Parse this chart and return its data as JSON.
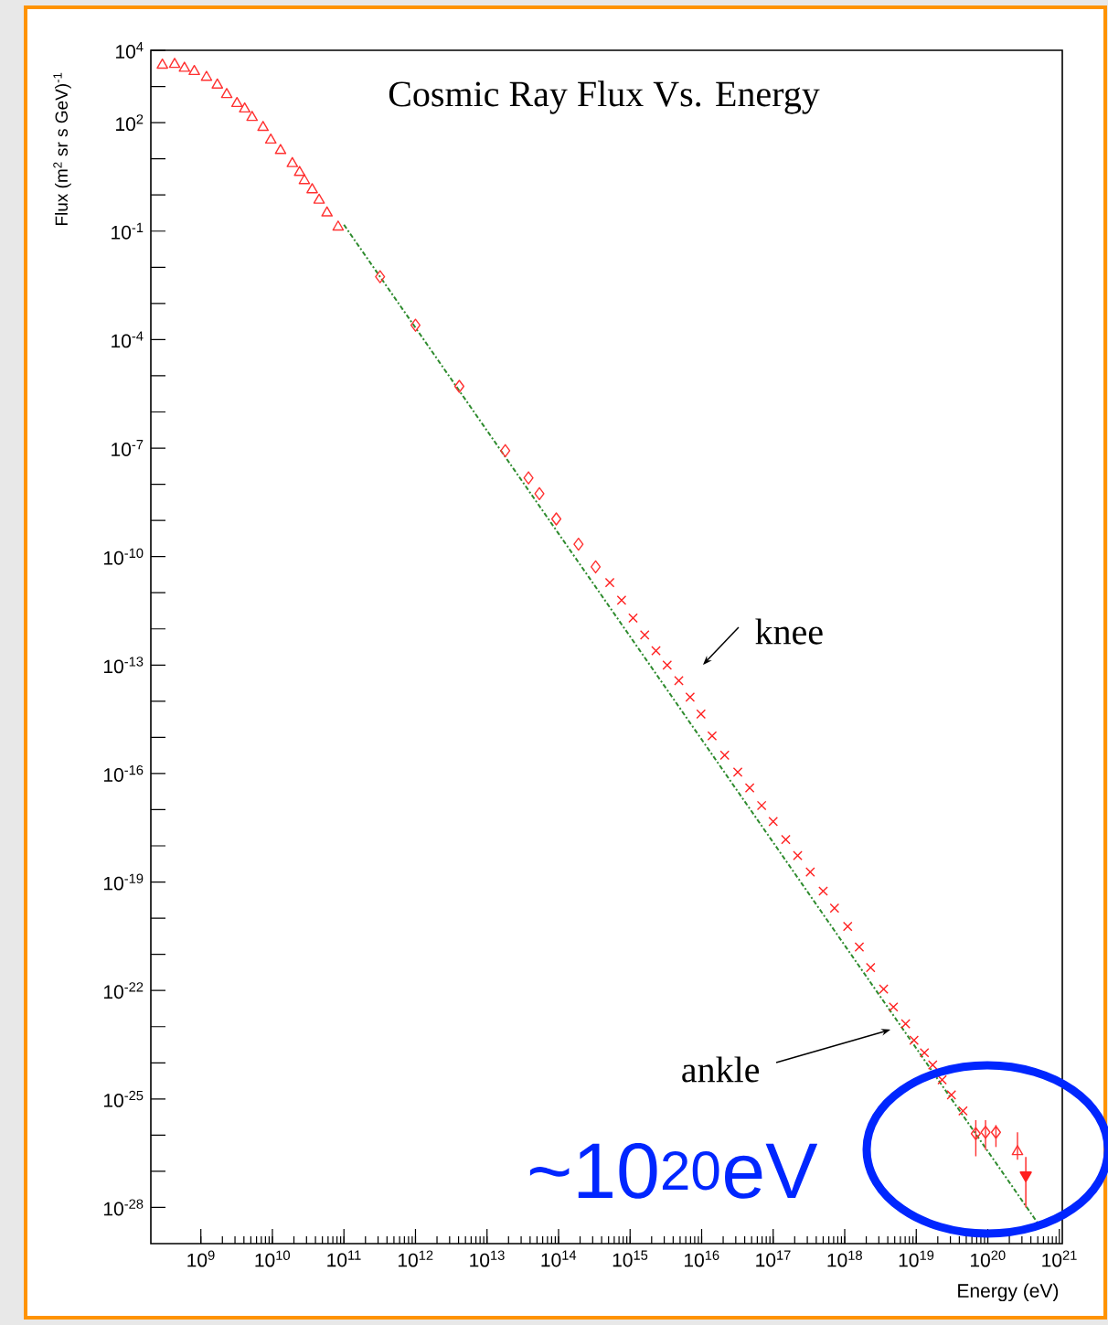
{
  "chart_data": {
    "type": "scatter",
    "title": "Cosmic Ray Flux Vs. Energy",
    "xlabel": "Energy (eV)",
    "ylabel": "Flux (m$^{2}$ sr s GeV)$^{-1}$",
    "log": "xy",
    "grid": false,
    "xlim": [
      200000000.0,
      1.1e+21
    ],
    "ylim": [
      1e-29,
      10000.0
    ],
    "xticks": [
      {
        "value": 1000000000.0,
        "label": "10$^{9}$"
      },
      {
        "value": 10000000000.0,
        "label": "10$^{10}$"
      },
      {
        "value": 100000000000.0,
        "label": "10$^{11}$"
      },
      {
        "value": 1000000000000.0,
        "label": "10$^{12}$"
      },
      {
        "value": 10000000000000.0,
        "label": "10$^{13}$"
      },
      {
        "value": 100000000000000.0,
        "label": "10$^{14}$"
      },
      {
        "value": 1000000000000000.0,
        "label": "10$^{15}$"
      },
      {
        "value": 1e+16,
        "label": "10$^{16}$"
      },
      {
        "value": 1e+17,
        "label": "10$^{17}$"
      },
      {
        "value": 1e+18,
        "label": "10$^{18}$"
      },
      {
        "value": 1e+19,
        "label": "10$^{19}$"
      },
      {
        "value": 1e+20,
        "label": "10$^{20}$"
      },
      {
        "value": 1e+21,
        "label": "10$^{21}$"
      }
    ],
    "yticks": [
      {
        "value": 10000.0,
        "label": "10$^{4}$"
      },
      {
        "value": 1000.0,
        "label": null
      },
      {
        "value": 100.0,
        "label": "10$^{2}$"
      },
      {
        "value": 10.0,
        "label": null
      },
      {
        "value": 1,
        "label": null
      },
      {
        "value": 0.1,
        "label": "10$^{-1}$"
      },
      {
        "value": 0.01,
        "label": null
      },
      {
        "value": 0.001,
        "label": null
      },
      {
        "value": 0.0001,
        "label": "10$^{-4}$"
      },
      {
        "value": 1e-05,
        "label": null
      },
      {
        "value": 1e-06,
        "label": null
      },
      {
        "value": 1e-07,
        "label": "10$^{-7}$"
      },
      {
        "value": 1e-08,
        "label": null
      },
      {
        "value": 1e-09,
        "label": null
      },
      {
        "value": 1e-10,
        "label": "10$^{-10}$"
      },
      {
        "value": 1e-11,
        "label": null
      },
      {
        "value": 1e-12,
        "label": null
      },
      {
        "value": 1e-13,
        "label": "10$^{-13}$"
      },
      {
        "value": 1e-14,
        "label": null
      },
      {
        "value": 1e-15,
        "label": null
      },
      {
        "value": 1e-16,
        "label": "10$^{-16}$"
      },
      {
        "value": 1e-17,
        "label": null
      },
      {
        "value": 1e-18,
        "label": null
      },
      {
        "value": 1e-19,
        "label": "10$^{-19}$"
      },
      {
        "value": 1e-20,
        "label": null
      },
      {
        "value": 1e-21,
        "label": null
      },
      {
        "value": 1e-22,
        "label": "10$^{-22}$"
      },
      {
        "value": 1e-23,
        "label": null
      },
      {
        "value": 1e-24,
        "label": null
      },
      {
        "value": 1e-25,
        "label": "10$^{-25}$"
      },
      {
        "value": 1e-26,
        "label": null
      },
      {
        "value": 1e-27,
        "label": null
      },
      {
        "value": 1e-28,
        "label": "10$^{-28}$"
      }
    ],
    "series": [
      {
        "type": "line",
        "color": "#2e8b2e",
        "line_style": "dashed",
        "marker": "none",
        "x": [
          100000000000.0,
          5.5e+20
        ],
        "values": [
          0.15,
          2.8e-29
        ]
      },
      {
        "color": "#ff3030",
        "marker": "triangle",
        "x": [
          290000000.0,
          430000000.0,
          590000000.0,
          810000000.0,
          1200000000.0,
          1700000000.0,
          2300000000.0,
          3200000000.0,
          4100000000.0,
          5200000000.0,
          7400000000.0,
          9500000000.0,
          13000000000.0,
          19000000000.0,
          24000000000.0,
          28000000000.0,
          36000000000.0,
          45000000000.0,
          58000000000.0,
          83000000000.0
        ],
        "values": [
          3900,
          4100,
          3200,
          2600,
          1800,
          1100,
          600,
          340,
          240,
          140,
          74,
          33,
          17,
          7.4,
          4.2,
          2.5,
          1.4,
          0.72,
          0.32,
          0.13
        ]
      },
      {
        "color": "#ff3030",
        "marker": "diamond",
        "x": [
          320000000000.0,
          1000000000000.0,
          4100000000000.0,
          18000000000000.0,
          38000000000000.0,
          54000000000000.0,
          93000000000000.0,
          190000000000000.0,
          330000000000000.0
        ],
        "values": [
          0.0055,
          0.00025,
          5.1e-06,
          8.5e-08,
          1.5e-08,
          5.5e-09,
          1.1e-09,
          2.2e-10,
          5.2e-11
        ]
      },
      {
        "color": "#ff2020",
        "marker": "cross",
        "x": [
          520000000000000.0,
          760000000000000.0,
          1100000000000000.0,
          1600000000000000.0,
          2300000000000000.0,
          3300000000000000.0,
          4800000000000000.0,
          6900000000000000.0,
          9800000000000000.0,
          1.4e+16,
          2.1e+16,
          3.2e+16,
          4.7e+16,
          6.9e+16,
          1e+17,
          1.5e+17,
          2.2e+17,
          3.3e+17,
          5e+17,
          7.2e+17,
          1.1e+18,
          1.6e+18,
          2.3e+18,
          3.5e+18,
          4.8e+18,
          7.1e+18,
          9.3e+18,
          1.3e+19,
          1.7e+19,
          2.3e+19,
          3.1e+19,
          4.5e+19
        ],
        "values": [
          1.9e-11,
          6.2e-12,
          2e-12,
          6.8e-13,
          2.5e-13,
          1e-13,
          3.7e-14,
          1.3e-14,
          4.4e-15,
          1.1e-15,
          3.2e-16,
          1.1e-16,
          4e-17,
          1.3e-17,
          4.7e-18,
          1.5e-18,
          5.4e-19,
          1.9e-19,
          5.6e-20,
          1.9e-20,
          5.9e-21,
          1.6e-21,
          4.3e-22,
          1.1e-22,
          3.5e-23,
          1.2e-23,
          4.2e-24,
          1.9e-24,
          8.7e-25,
          3.4e-25,
          1.3e-25,
          4.7e-26
        ]
      },
      {
        "color": "#ff3030",
        "marker": "diamond",
        "x": [
          6.8e+19,
          9.3e+19,
          1.3e+20
        ],
        "values": [
          1.1e-26,
          1.2e-26,
          1.2e-26
        ],
        "errors": [
          [
            2.6e-27,
            2.6e-26
          ],
          [
            3.9e-27,
            2.6e-26
          ],
          [
            4.7e-27,
            1.9e-26
          ]
        ]
      },
      {
        "color": "#ff3030",
        "marker": "triangle",
        "x": [
          2.6e+20
        ],
        "values": [
          3.5e-27
        ],
        "errors": [
          [
            2.1e-27,
            1.2e-26
          ]
        ]
      },
      {
        "color": "#ff2020",
        "marker": "triangle-down",
        "x": [
          3.4e+20
        ],
        "values": [
          7.8e-28
        ],
        "errors": [
          [
            1e-28,
            2.5e-27
          ]
        ]
      }
    ],
    "annotations": [
      "knee",
      "ankle",
      "~10$^{20}$eV"
    ]
  }
}
